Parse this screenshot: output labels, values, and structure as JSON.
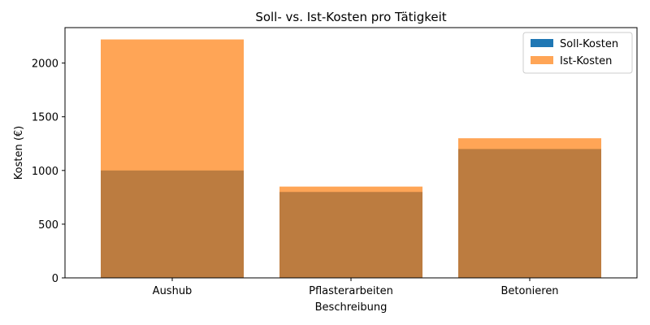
{
  "chart_data": {
    "type": "bar",
    "title": "Soll- vs. Ist-Kosten pro Tätigkeit",
    "xlabel": "Beschreibung",
    "ylabel": "Kosten (€)",
    "categories": [
      "Aushub",
      "Pflasterarbeiten",
      "Betonieren"
    ],
    "series": [
      {
        "name": "Soll-Kosten",
        "values": [
          1000,
          800,
          1200
        ],
        "color": "#1f77b4",
        "opacity": 1.0
      },
      {
        "name": "Ist-Kosten",
        "values": [
          2220,
          850,
          1300
        ],
        "color": "#ff7f0e",
        "opacity": 0.7
      }
    ],
    "ylim": [
      0,
      2330
    ],
    "yticks": [
      0,
      500,
      1000,
      1500,
      2000
    ],
    "grid": false,
    "legend_position": "top-right",
    "overlay": true
  }
}
